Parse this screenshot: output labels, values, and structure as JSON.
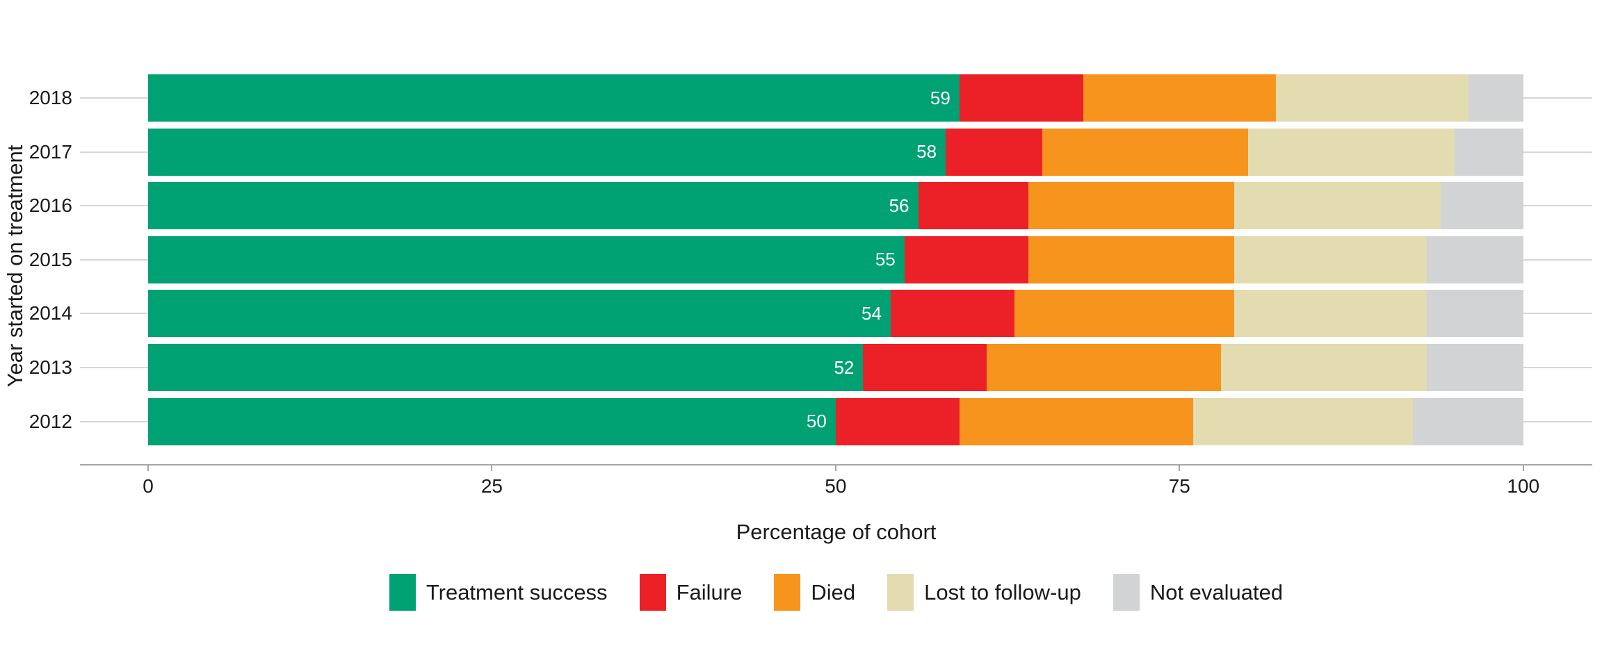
{
  "chart_data": {
    "type": "bar",
    "orientation": "horizontal",
    "stacked": true,
    "title": "",
    "xlabel": "Percentage of cohort",
    "ylabel": "Year started on treatment",
    "categories": [
      "2018",
      "2017",
      "2016",
      "2015",
      "2014",
      "2013",
      "2012"
    ],
    "series": [
      {
        "name": "Treatment success",
        "color": "#00A173",
        "values": [
          59,
          58,
          56,
          55,
          54,
          52,
          50
        ],
        "show_value_label": true
      },
      {
        "name": "Failure",
        "color": "#EC2027",
        "values": [
          9,
          7,
          8,
          9,
          9,
          9,
          9
        ],
        "show_value_label": false
      },
      {
        "name": "Died",
        "color": "#F7941D",
        "values": [
          14,
          15,
          15,
          15,
          16,
          17,
          17
        ],
        "show_value_label": false
      },
      {
        "name": "Lost to follow-up",
        "color": "#E2DCB0",
        "values": [
          14,
          15,
          15,
          14,
          14,
          15,
          16
        ],
        "show_value_label": false
      },
      {
        "name": "Not evaluated",
        "color": "#D2D3D5",
        "values": [
          4,
          5,
          6,
          7,
          7,
          7,
          8
        ],
        "show_value_label": false
      }
    ],
    "bar_value_labels": [
      "59",
      "58",
      "56",
      "55",
      "54",
      "52",
      "50"
    ],
    "xlim": [
      0,
      100
    ],
    "x_ticks": [
      "0",
      "25",
      "50",
      "75",
      "100"
    ],
    "x_tick_values": [
      0,
      25,
      50,
      75,
      100
    ],
    "grid": "horizontal category gridlines only",
    "legend_position": "bottom",
    "value_label_color": "#FFFFFF"
  }
}
